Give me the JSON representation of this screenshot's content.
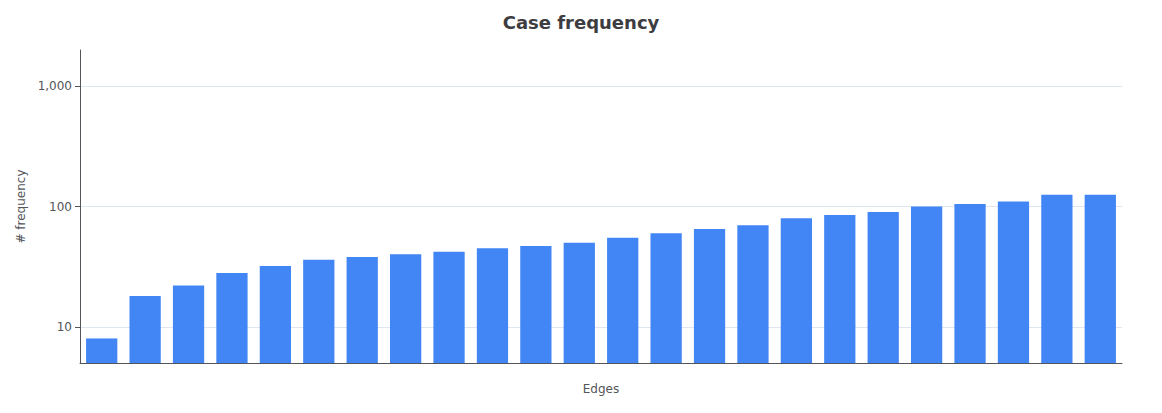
{
  "chart_data": {
    "type": "bar",
    "title": "Case frequency",
    "categories": [
      null,
      null,
      null,
      null,
      null,
      null,
      null,
      null,
      null,
      null,
      null,
      null,
      null,
      null,
      null,
      null,
      null,
      null,
      null,
      null,
      null,
      null,
      null,
      null
    ],
    "values": [
      8,
      18,
      22,
      28,
      32,
      36,
      38,
      40,
      42,
      45,
      47,
      50,
      55,
      60,
      65,
      70,
      80,
      85,
      90,
      100,
      105,
      110,
      125,
      125
    ],
    "color": "#4285f4",
    "xlabel": "Edges",
    "ylabel": "# frequency",
    "log": "y",
    "ylim": [
      5,
      2000
    ],
    "yticks": [
      10,
      100,
      {
        "value": 1000,
        "label": "1,000"
      }
    ],
    "grid": true,
    "tick_labels": "y"
  }
}
